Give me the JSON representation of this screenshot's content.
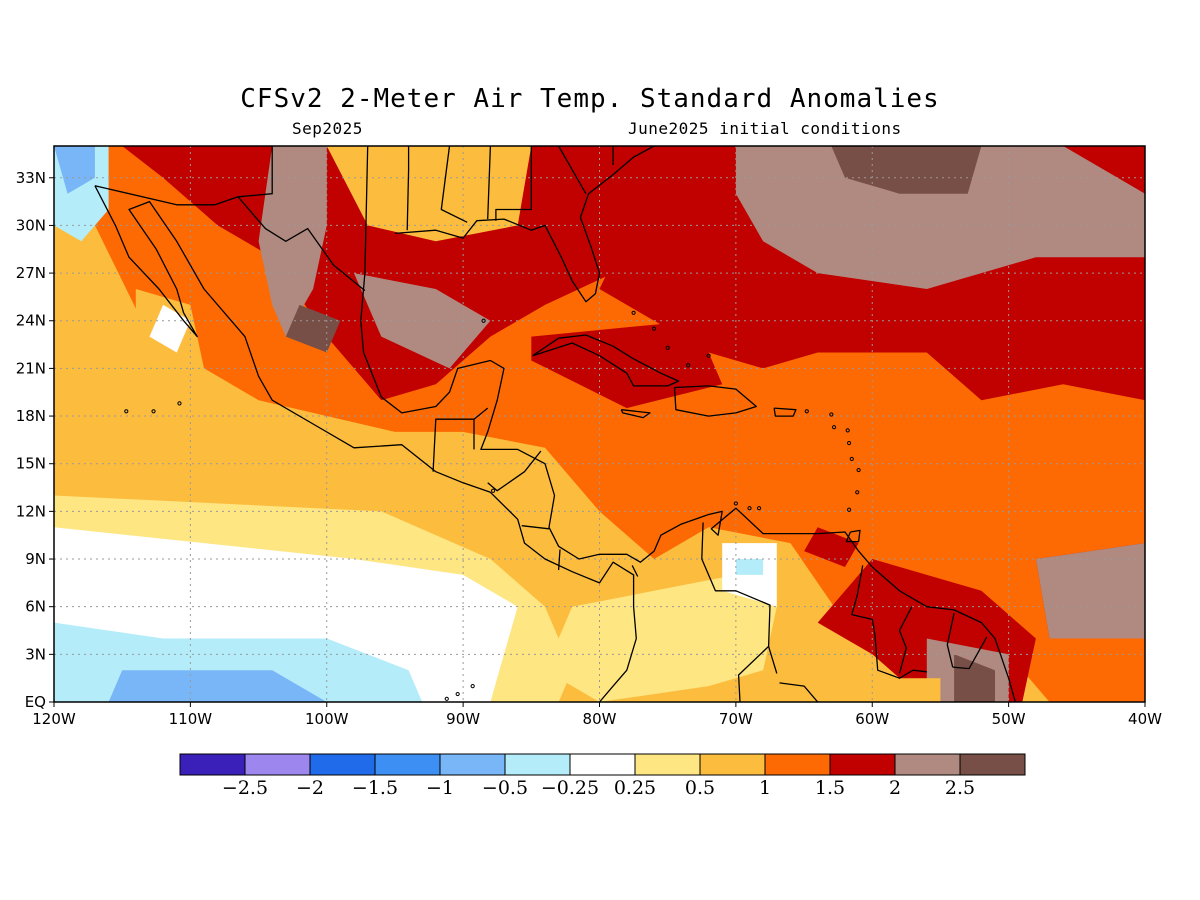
{
  "title": "CFSv2 2-Meter Air Temp. Standard Anomalies",
  "valid_month": "Sep2025",
  "init_conditions": "June2025 initial conditions",
  "map": {
    "lon_range": [
      -120,
      -40
    ],
    "lat_range": [
      0,
      35
    ],
    "lon_ticks": [
      {
        "value": -120,
        "label": "120W"
      },
      {
        "value": -110,
        "label": "110W"
      },
      {
        "value": -100,
        "label": "100W"
      },
      {
        "value": -90,
        "label": "90W"
      },
      {
        "value": -80,
        "label": "80W"
      },
      {
        "value": -70,
        "label": "70W"
      },
      {
        "value": -60,
        "label": "60W"
      },
      {
        "value": -50,
        "label": "50W"
      },
      {
        "value": -40,
        "label": "40W"
      }
    ],
    "lat_ticks": [
      {
        "value": 0,
        "label": "EQ"
      },
      {
        "value": 3,
        "label": "3N"
      },
      {
        "value": 6,
        "label": "6N"
      },
      {
        "value": 9,
        "label": "9N"
      },
      {
        "value": 12,
        "label": "12N"
      },
      {
        "value": 15,
        "label": "15N"
      },
      {
        "value": 18,
        "label": "18N"
      },
      {
        "value": 21,
        "label": "21N"
      },
      {
        "value": 24,
        "label": "24N"
      },
      {
        "value": 27,
        "label": "27N"
      },
      {
        "value": 30,
        "label": "30N"
      },
      {
        "value": 33,
        "label": "33N"
      }
    ]
  },
  "colorbar": {
    "colors": [
      "#3a1fb8",
      "#9d86ee",
      "#1f6bea",
      "#3d8ff4",
      "#78b6f7",
      "#b4ecfa",
      "#ffffff",
      "#fee683",
      "#fcbd3f",
      "#fd6a04",
      "#c10000",
      "#b08a80",
      "#784f46"
    ],
    "labels": [
      "-2.5",
      "-2",
      "-1.5",
      "-1",
      "-0.5",
      "-0.25",
      "0.25",
      "0.5",
      "1",
      "1.5",
      "2",
      "2.5"
    ]
  }
}
